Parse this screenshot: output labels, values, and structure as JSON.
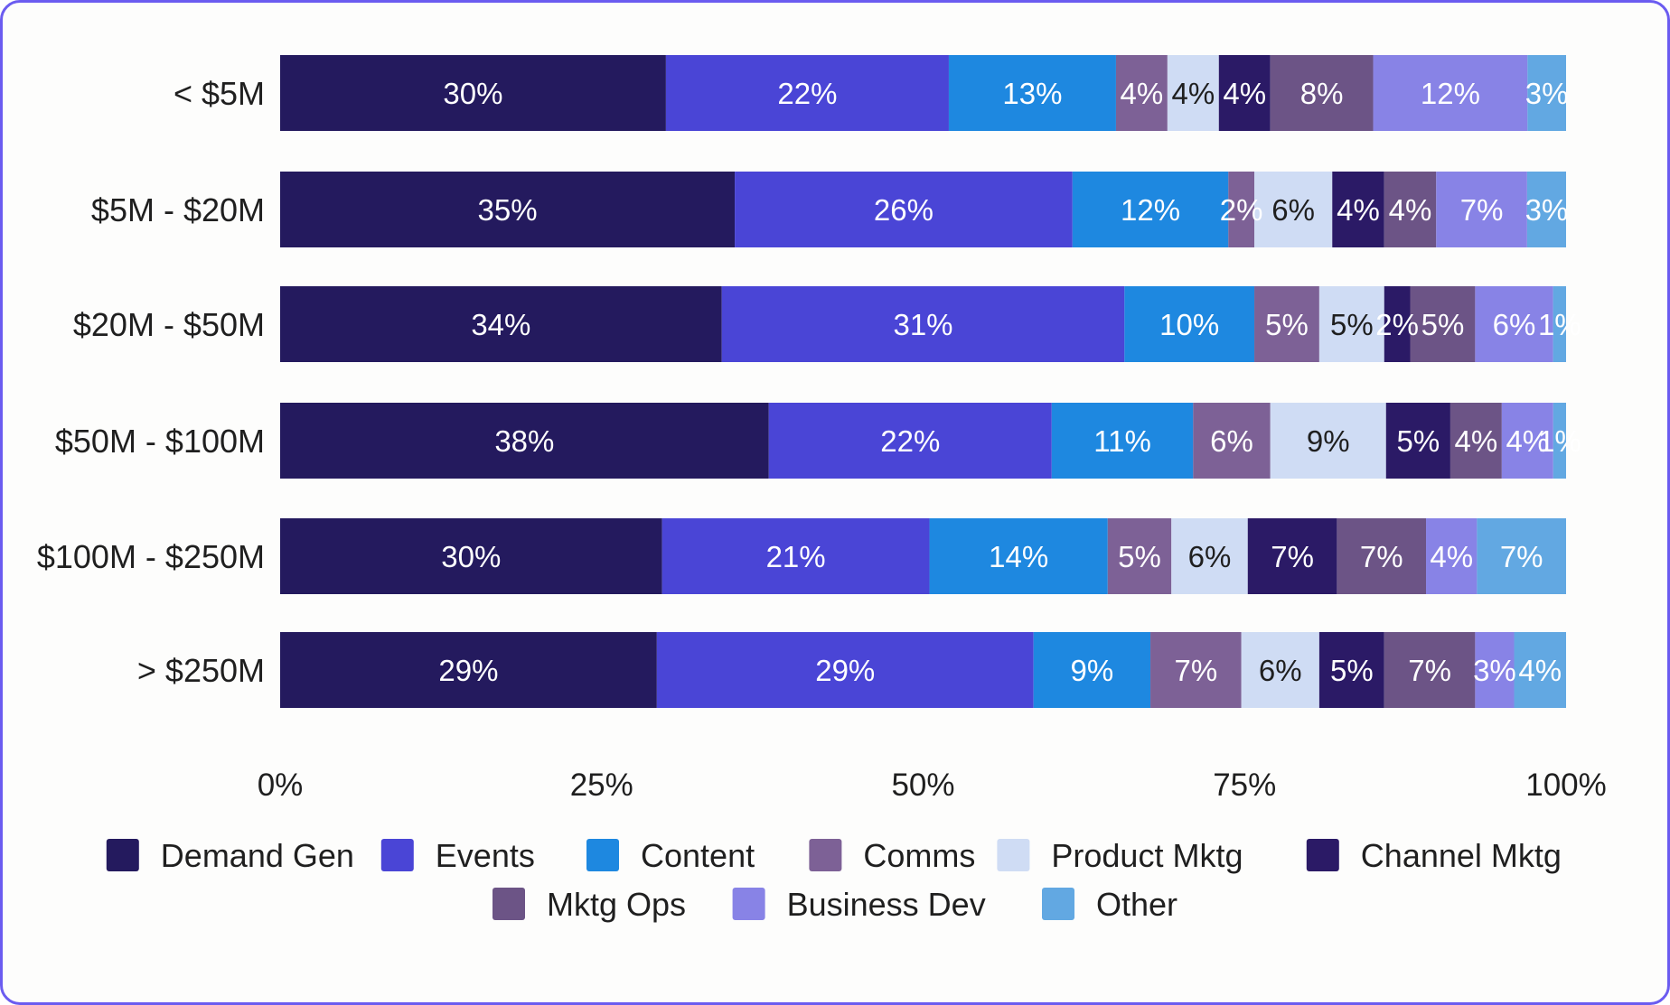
{
  "chart_data": {
    "type": "bar",
    "orientation": "horizontal",
    "stacked": true,
    "normalized": true,
    "title": "",
    "xlabel": "",
    "ylabel": "",
    "xlim": [
      0,
      100
    ],
    "x_ticks": [
      "0%",
      "25%",
      "50%",
      "75%",
      "100%"
    ],
    "grid": false,
    "legend_position": "bottom",
    "categories": [
      "< $5M",
      "$5M - $20M",
      "$20M - $50M",
      "$50M - $100M",
      "$100M - $250M",
      "> $250M"
    ],
    "series": [
      {
        "name": "Demand Gen",
        "color": "#241a5e",
        "label_color": "#ffffff",
        "values": [
          30,
          35,
          34,
          38,
          30,
          29
        ]
      },
      {
        "name": "Events",
        "color": "#4a45d6",
        "label_color": "#ffffff",
        "values": [
          22,
          26,
          31,
          22,
          21,
          29
        ]
      },
      {
        "name": "Content",
        "color": "#1e88e0",
        "label_color": "#ffffff",
        "values": [
          13,
          12,
          10,
          11,
          14,
          9
        ]
      },
      {
        "name": "Comms",
        "color": "#7d6196",
        "label_color": "#ffffff",
        "values": [
          4,
          2,
          5,
          6,
          5,
          7
        ]
      },
      {
        "name": "Product Mktg",
        "color": "#cfdcf4",
        "label_color": "#1f1f1f",
        "values": [
          4,
          6,
          5,
          9,
          6,
          6
        ]
      },
      {
        "name": "Channel Mktg",
        "color": "#2b1a66",
        "label_color": "#ffffff",
        "values": [
          4,
          4,
          2,
          5,
          7,
          5
        ]
      },
      {
        "name": "Mktg Ops",
        "color": "#6c5486",
        "label_color": "#ffffff",
        "values": [
          8,
          4,
          5,
          4,
          7,
          7
        ]
      },
      {
        "name": "Business Dev",
        "color": "#8883e6",
        "label_color": "#ffffff",
        "values": [
          12,
          7,
          6,
          4,
          4,
          3
        ]
      },
      {
        "name": "Other",
        "color": "#62a8e2",
        "label_color": "#ffffff",
        "values": [
          3,
          3,
          1,
          1,
          7,
          4
        ]
      }
    ]
  }
}
